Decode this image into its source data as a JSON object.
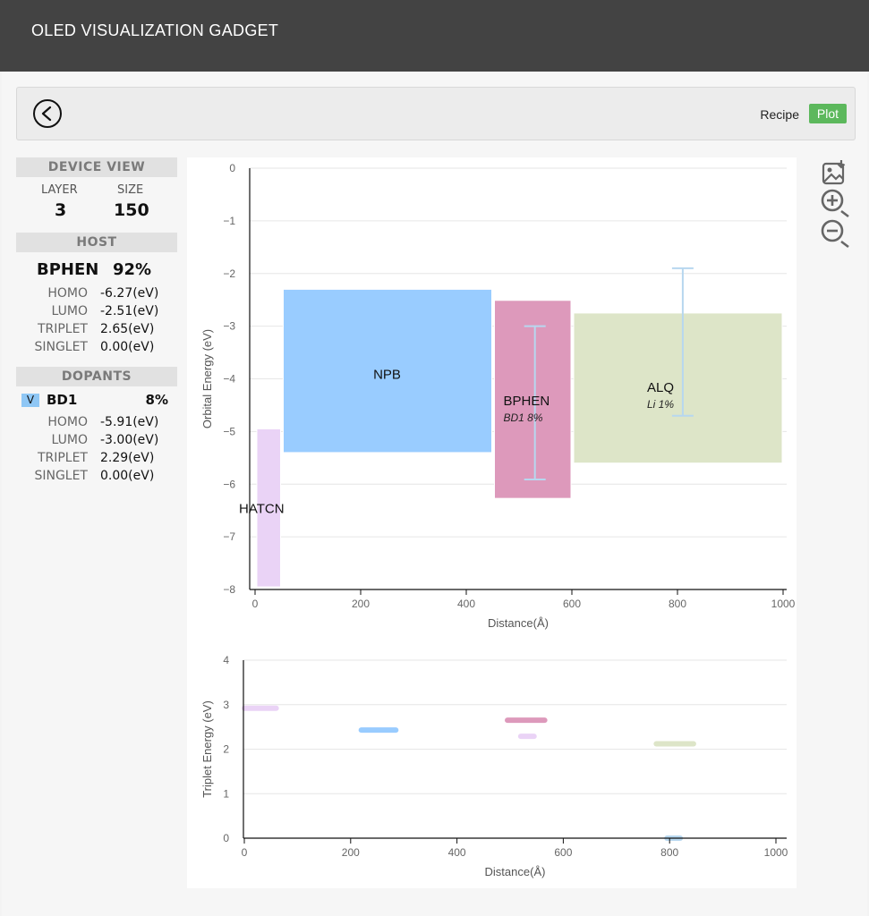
{
  "app": {
    "title": "OLED VISUALIZATION GADGET"
  },
  "toolbar": {
    "recipe_label": "Recipe",
    "plot_label": "Plot"
  },
  "sidebar": {
    "device_view": {
      "header": "DEVICE VIEW",
      "layer_label": "LAYER",
      "size_label": "SIZE",
      "layer_value": "3",
      "size_value": "150"
    },
    "host": {
      "header": "HOST",
      "name": "BPHEN",
      "percent": "92%",
      "props": [
        {
          "key": "HOMO",
          "value": "-6.27(eV)"
        },
        {
          "key": "LUMO",
          "value": "-2.51(eV)"
        },
        {
          "key": "TRIPLET",
          "value": "2.65(eV)"
        },
        {
          "key": "SINGLET",
          "value": "0.00(eV)"
        }
      ]
    },
    "dopants": {
      "header": "DOPANTS",
      "toggle": "V",
      "name": "BD1",
      "percent": "8%",
      "props": [
        {
          "key": "HOMO",
          "value": "-5.91(eV)"
        },
        {
          "key": "LUMO",
          "value": "-3.00(eV)"
        },
        {
          "key": "TRIPLET",
          "value": "2.29(eV)"
        },
        {
          "key": "SINGLET",
          "value": "0.00(eV)"
        }
      ]
    }
  },
  "icons": [
    "image-download-icon",
    "zoom-in-icon",
    "zoom-out-icon",
    "back-icon"
  ],
  "colors": {
    "header": "#434343",
    "plot_button": "#5cb85c",
    "hatcn": "#ead3f6",
    "npb": "#99ccff",
    "bphen": "#dd99bb",
    "alq": "#dde5c8",
    "dopant_bar": "#b7d7ef"
  },
  "chart_data": [
    {
      "type": "bar",
      "xlabel": "Distance(Å)",
      "ylabel": "Orbital Energy (eV)",
      "xlim": [
        0,
        1000
      ],
      "ylim": [
        -8,
        0
      ],
      "xticks": [
        0,
        200,
        400,
        600,
        800,
        1000
      ],
      "yticks": [
        0,
        -1,
        -2,
        -3,
        -4,
        -5,
        -6,
        -7,
        -8
      ],
      "grid": true,
      "layers": [
        {
          "label": "HATCN",
          "sublabel": "",
          "x0": 0,
          "x1": 50,
          "lumo": -4.95,
          "homo": -7.95,
          "color": "#ead3f6"
        },
        {
          "label": "NPB",
          "sublabel": "",
          "x0": 50,
          "x1": 450,
          "lumo": -2.3,
          "homo": -5.4,
          "color": "#99ccff"
        },
        {
          "label": "BPHEN",
          "sublabel": "BD1 8%",
          "x0": 450,
          "x1": 600,
          "lumo": -2.51,
          "homo": -6.27,
          "color": "#dd99bb"
        },
        {
          "label": "ALQ",
          "sublabel": "Li 1%",
          "x0": 600,
          "x1": 1000,
          "lumo": -2.75,
          "homo": -5.6,
          "color": "#dde5c8"
        }
      ],
      "dopant_levels": [
        {
          "x": 530,
          "lumo": -3.0,
          "homo": -5.91
        },
        {
          "x": 810,
          "lumo": -1.9,
          "homo": -4.7
        }
      ]
    },
    {
      "type": "scatter",
      "xlabel": "Distance(Å)",
      "ylabel": "Triplet Energy (eV)",
      "xlim": [
        0,
        1000
      ],
      "ylim": [
        0,
        4
      ],
      "xticks": [
        0,
        200,
        400,
        600,
        800,
        1000
      ],
      "yticks": [
        0,
        1,
        2,
        3,
        4
      ],
      "grid": true,
      "segments": [
        {
          "x0": 0,
          "x1": 60,
          "y": 2.92,
          "color": "#ead3f6"
        },
        {
          "x0": 220,
          "x1": 285,
          "y": 2.43,
          "color": "#99ccff"
        },
        {
          "x0": 495,
          "x1": 565,
          "y": 2.65,
          "color": "#dd99bb"
        },
        {
          "x0": 520,
          "x1": 545,
          "y": 2.29,
          "color": "#ead3f6"
        },
        {
          "x0": 775,
          "x1": 845,
          "y": 2.12,
          "color": "#dde5c8"
        },
        {
          "x0": 795,
          "x1": 820,
          "y": 0.0,
          "color": "#b7d7ef"
        }
      ]
    }
  ]
}
